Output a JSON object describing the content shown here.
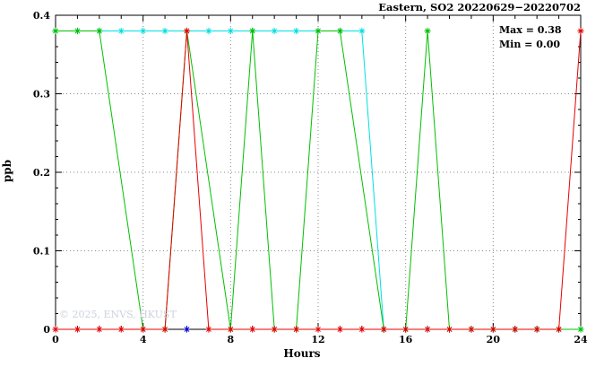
{
  "title": "Eastern, SO2 20220629−20220702",
  "stats": {
    "max_label": "Max = 0.38",
    "min_label": "Min = 0.00"
  },
  "watermark": "© 2025, ENVS, HKUST",
  "chart_data": {
    "type": "line",
    "title": "Eastern, SO2 20220629−20220702",
    "xlabel": "Hours",
    "ylabel": "ppb",
    "xlim": [
      0,
      24
    ],
    "ylim": [
      0,
      0.4
    ],
    "xticks": [
      0,
      4,
      8,
      12,
      16,
      20,
      24
    ],
    "xtick_labels": [
      "0",
      "4",
      "8",
      "12",
      "16",
      "20",
      "24"
    ],
    "yticks": [
      0,
      0.1,
      0.2,
      0.3,
      0.4
    ],
    "ytick_labels": [
      "0",
      "0.1",
      "0.2",
      "0.3",
      "0.4"
    ],
    "x_minor_step": 1,
    "y_minor_step": 0.02,
    "grid": true,
    "grid_color": "#888888",
    "border_color": "#000000",
    "max": 0.38,
    "min": 0.0,
    "legend_position": "none",
    "series": [
      {
        "name": "cyan-series",
        "color": "#00e0e0",
        "marker": "asterisk",
        "points": [
          [
            0,
            0.38
          ],
          [
            1,
            0.38
          ],
          [
            2,
            0.38
          ],
          [
            3,
            0.38
          ],
          [
            4,
            0.38
          ],
          [
            5,
            0.38
          ],
          [
            6,
            0.38
          ],
          [
            7,
            0.38
          ],
          [
            8,
            0.38
          ],
          [
            9,
            0.38
          ],
          [
            10,
            0.38
          ],
          [
            11,
            0.38
          ],
          [
            12,
            0.38
          ],
          [
            13,
            0.38
          ],
          [
            14,
            0.38
          ],
          [
            15,
            0
          ],
          [
            16,
            0
          ],
          [
            17,
            0
          ],
          [
            18,
            0
          ],
          [
            19,
            0
          ],
          [
            20,
            0
          ],
          [
            21,
            0
          ],
          [
            22,
            0
          ],
          [
            23,
            0
          ],
          [
            24,
            0
          ]
        ]
      },
      {
        "name": "green-series",
        "color": "#00c000",
        "marker": "asterisk",
        "points": [
          [
            0,
            0.38
          ],
          [
            1,
            0.38
          ],
          [
            2,
            0.38
          ],
          [
            4,
            0
          ],
          [
            5,
            0
          ],
          [
            6,
            0.38
          ],
          [
            8,
            0
          ],
          [
            9,
            0.38
          ],
          [
            10,
            0
          ],
          [
            11,
            0
          ],
          [
            12,
            0.38
          ],
          [
            13,
            0.38
          ],
          [
            15,
            0
          ],
          [
            16,
            0
          ],
          [
            17,
            0.38
          ],
          [
            18,
            0
          ],
          [
            19,
            0
          ],
          [
            20,
            0
          ],
          [
            21,
            0
          ],
          [
            22,
            0
          ],
          [
            23,
            0
          ],
          [
            24,
            0
          ]
        ]
      },
      {
        "name": "red-series",
        "color": "#e60000",
        "marker": "asterisk",
        "points": [
          [
            0,
            0
          ],
          [
            1,
            0
          ],
          [
            2,
            0
          ],
          [
            3,
            0
          ],
          [
            4,
            0
          ],
          [
            5,
            0
          ],
          [
            6,
            0.38
          ],
          [
            7,
            0
          ],
          [
            8,
            0
          ],
          [
            9,
            0
          ],
          [
            10,
            0
          ],
          [
            11,
            0
          ],
          [
            12,
            0
          ],
          [
            13,
            0
          ],
          [
            14,
            0
          ],
          [
            15,
            0
          ],
          [
            16,
            0
          ],
          [
            17,
            0
          ],
          [
            18,
            0
          ],
          [
            19,
            0
          ],
          [
            20,
            0
          ],
          [
            21,
            0
          ],
          [
            22,
            0
          ],
          [
            23,
            0
          ],
          [
            24,
            0.38
          ]
        ]
      },
      {
        "name": "blue-series",
        "color": "#0000cc",
        "marker": "asterisk",
        "points": [
          [
            6,
            0
          ]
        ]
      }
    ]
  }
}
